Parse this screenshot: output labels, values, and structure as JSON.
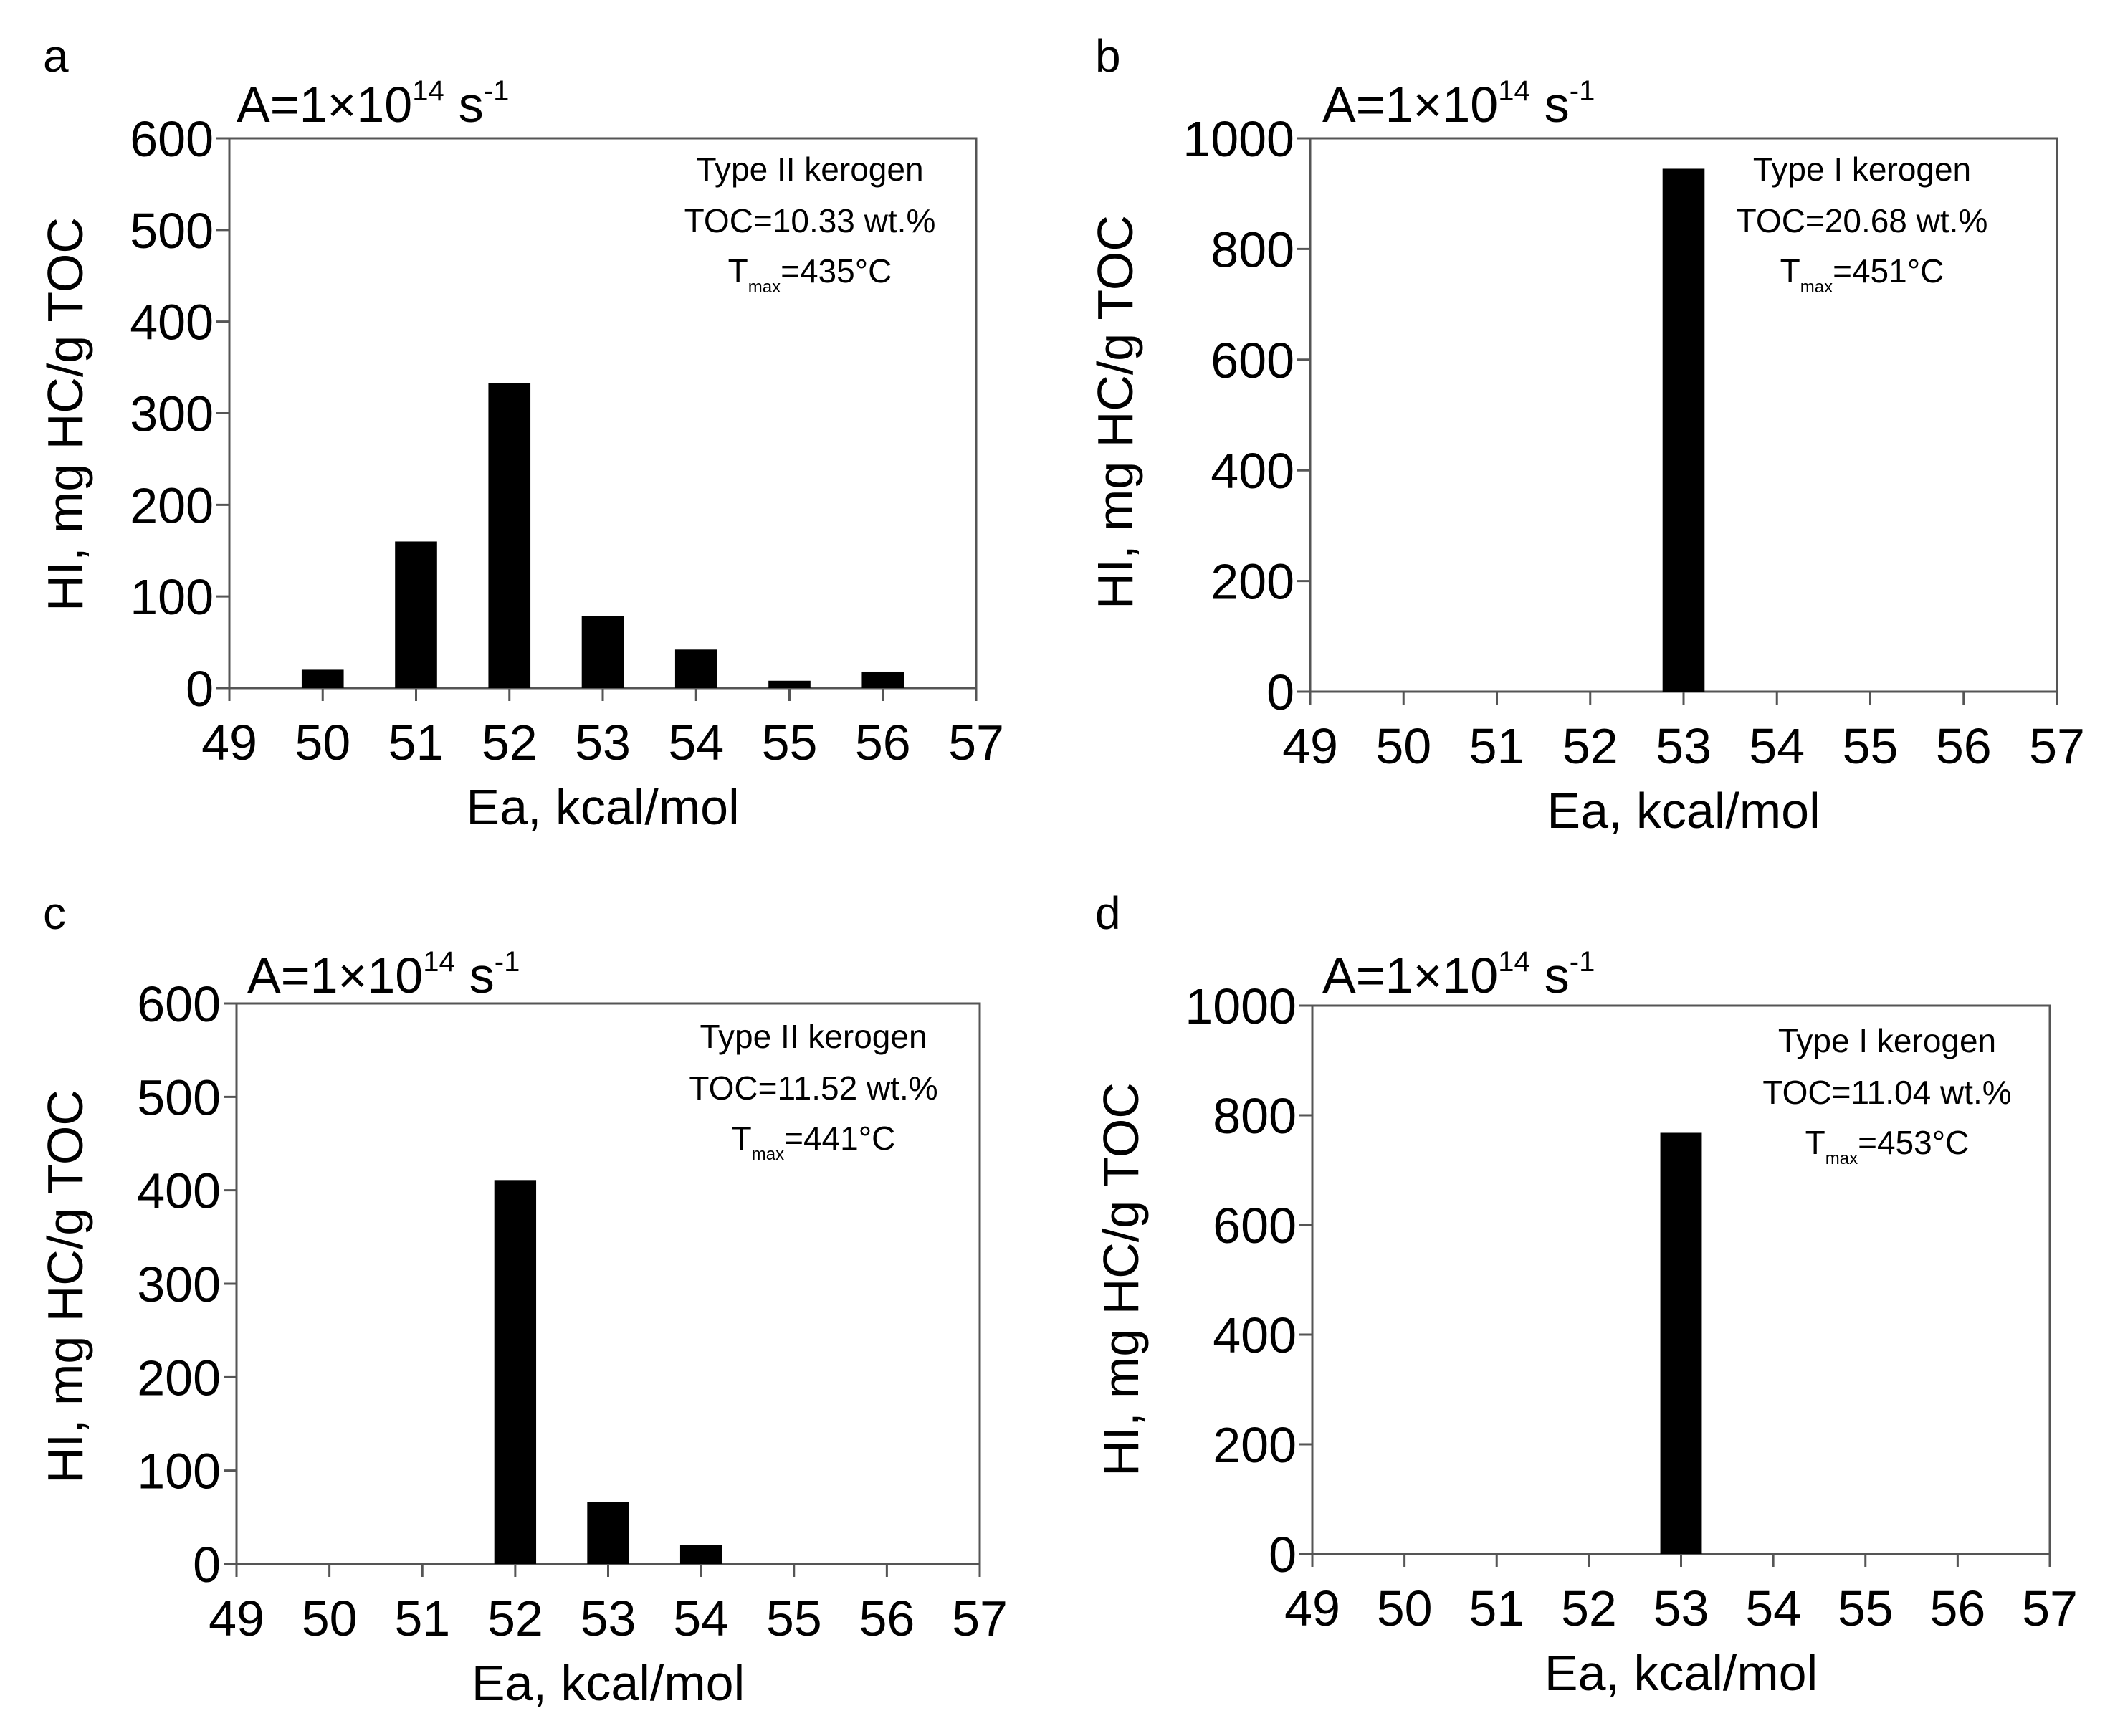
{
  "chart_data": [
    {
      "type": "bar",
      "panel_label": "a",
      "factor": {
        "main": "A=1×10",
        "exp": "14",
        "unit": "s",
        "unit_exp": "-1"
      },
      "xlabel": "Ea, kcal/mol",
      "ylabel": "HI, mg HC/g TOC",
      "xlim": [
        49,
        57
      ],
      "ylim": [
        0,
        600
      ],
      "xticks": [
        49,
        50,
        51,
        52,
        53,
        54,
        55,
        56,
        57
      ],
      "yticks": [
        0,
        100,
        200,
        300,
        400,
        500,
        600
      ],
      "x": [
        50,
        51,
        52,
        53,
        54,
        55,
        56
      ],
      "values": [
        20,
        160,
        333,
        79,
        42,
        8,
        18
      ],
      "annotation": {
        "line1": "Type II kerogen",
        "line2": "TOC=10.33 wt.%",
        "t_main": "T",
        "t_sub": "max",
        "t_value": "=435°C"
      },
      "bar_color": "#000000"
    },
    {
      "type": "bar",
      "panel_label": "b",
      "factor": {
        "main": "A=1×10",
        "exp": "14",
        "unit": "s",
        "unit_exp": "-1"
      },
      "xlabel": "Ea, kcal/mol",
      "ylabel": "HI, mg HC/g TOC",
      "xlim": [
        49,
        57
      ],
      "ylim": [
        0,
        1000
      ],
      "xticks": [
        49,
        50,
        51,
        52,
        53,
        54,
        55,
        56,
        57
      ],
      "yticks": [
        0,
        200,
        400,
        600,
        800,
        1000
      ],
      "x": [
        53
      ],
      "values": [
        945
      ],
      "annotation": {
        "line1": "Type I kerogen",
        "line2": "TOC=20.68 wt.%",
        "t_main": "T",
        "t_sub": "max",
        "t_value": "=451°C"
      },
      "bar_color": "#000000"
    },
    {
      "type": "bar",
      "panel_label": "c",
      "factor": {
        "main": "A=1×10",
        "exp": "14",
        "unit": "s",
        "unit_exp": "-1"
      },
      "xlabel": "Ea, kcal/mol",
      "ylabel": "HI, mg HC/g TOC",
      "xlim": [
        49,
        57
      ],
      "ylim": [
        0,
        600
      ],
      "xticks": [
        49,
        50,
        51,
        52,
        53,
        54,
        55,
        56,
        57
      ],
      "yticks": [
        0,
        100,
        200,
        300,
        400,
        500,
        600
      ],
      "x": [
        52,
        53,
        54
      ],
      "values": [
        411,
        66,
        20
      ],
      "annotation": {
        "line1": "Type II kerogen",
        "line2": "TOC=11.52 wt.%",
        "t_main": "T",
        "t_sub": "max",
        "t_value": "=441°C"
      },
      "bar_color": "#000000"
    },
    {
      "type": "bar",
      "panel_label": "d",
      "factor": {
        "main": "A=1×10",
        "exp": "14",
        "unit": "s",
        "unit_exp": "-1"
      },
      "xlabel": "Ea, kcal/mol",
      "ylabel": "HI, mg HC/g TOC",
      "xlim": [
        49,
        57
      ],
      "ylim": [
        0,
        1000
      ],
      "xticks": [
        49,
        50,
        51,
        52,
        53,
        54,
        55,
        56,
        57
      ],
      "yticks": [
        0,
        200,
        400,
        600,
        800,
        1000
      ],
      "x": [
        53
      ],
      "values": [
        768
      ],
      "annotation": {
        "line1": "Type I kerogen",
        "line2": "TOC=11.04 wt.%",
        "t_main": "T",
        "t_sub": "max",
        "t_value": "=453°C"
      },
      "bar_color": "#000000"
    }
  ]
}
